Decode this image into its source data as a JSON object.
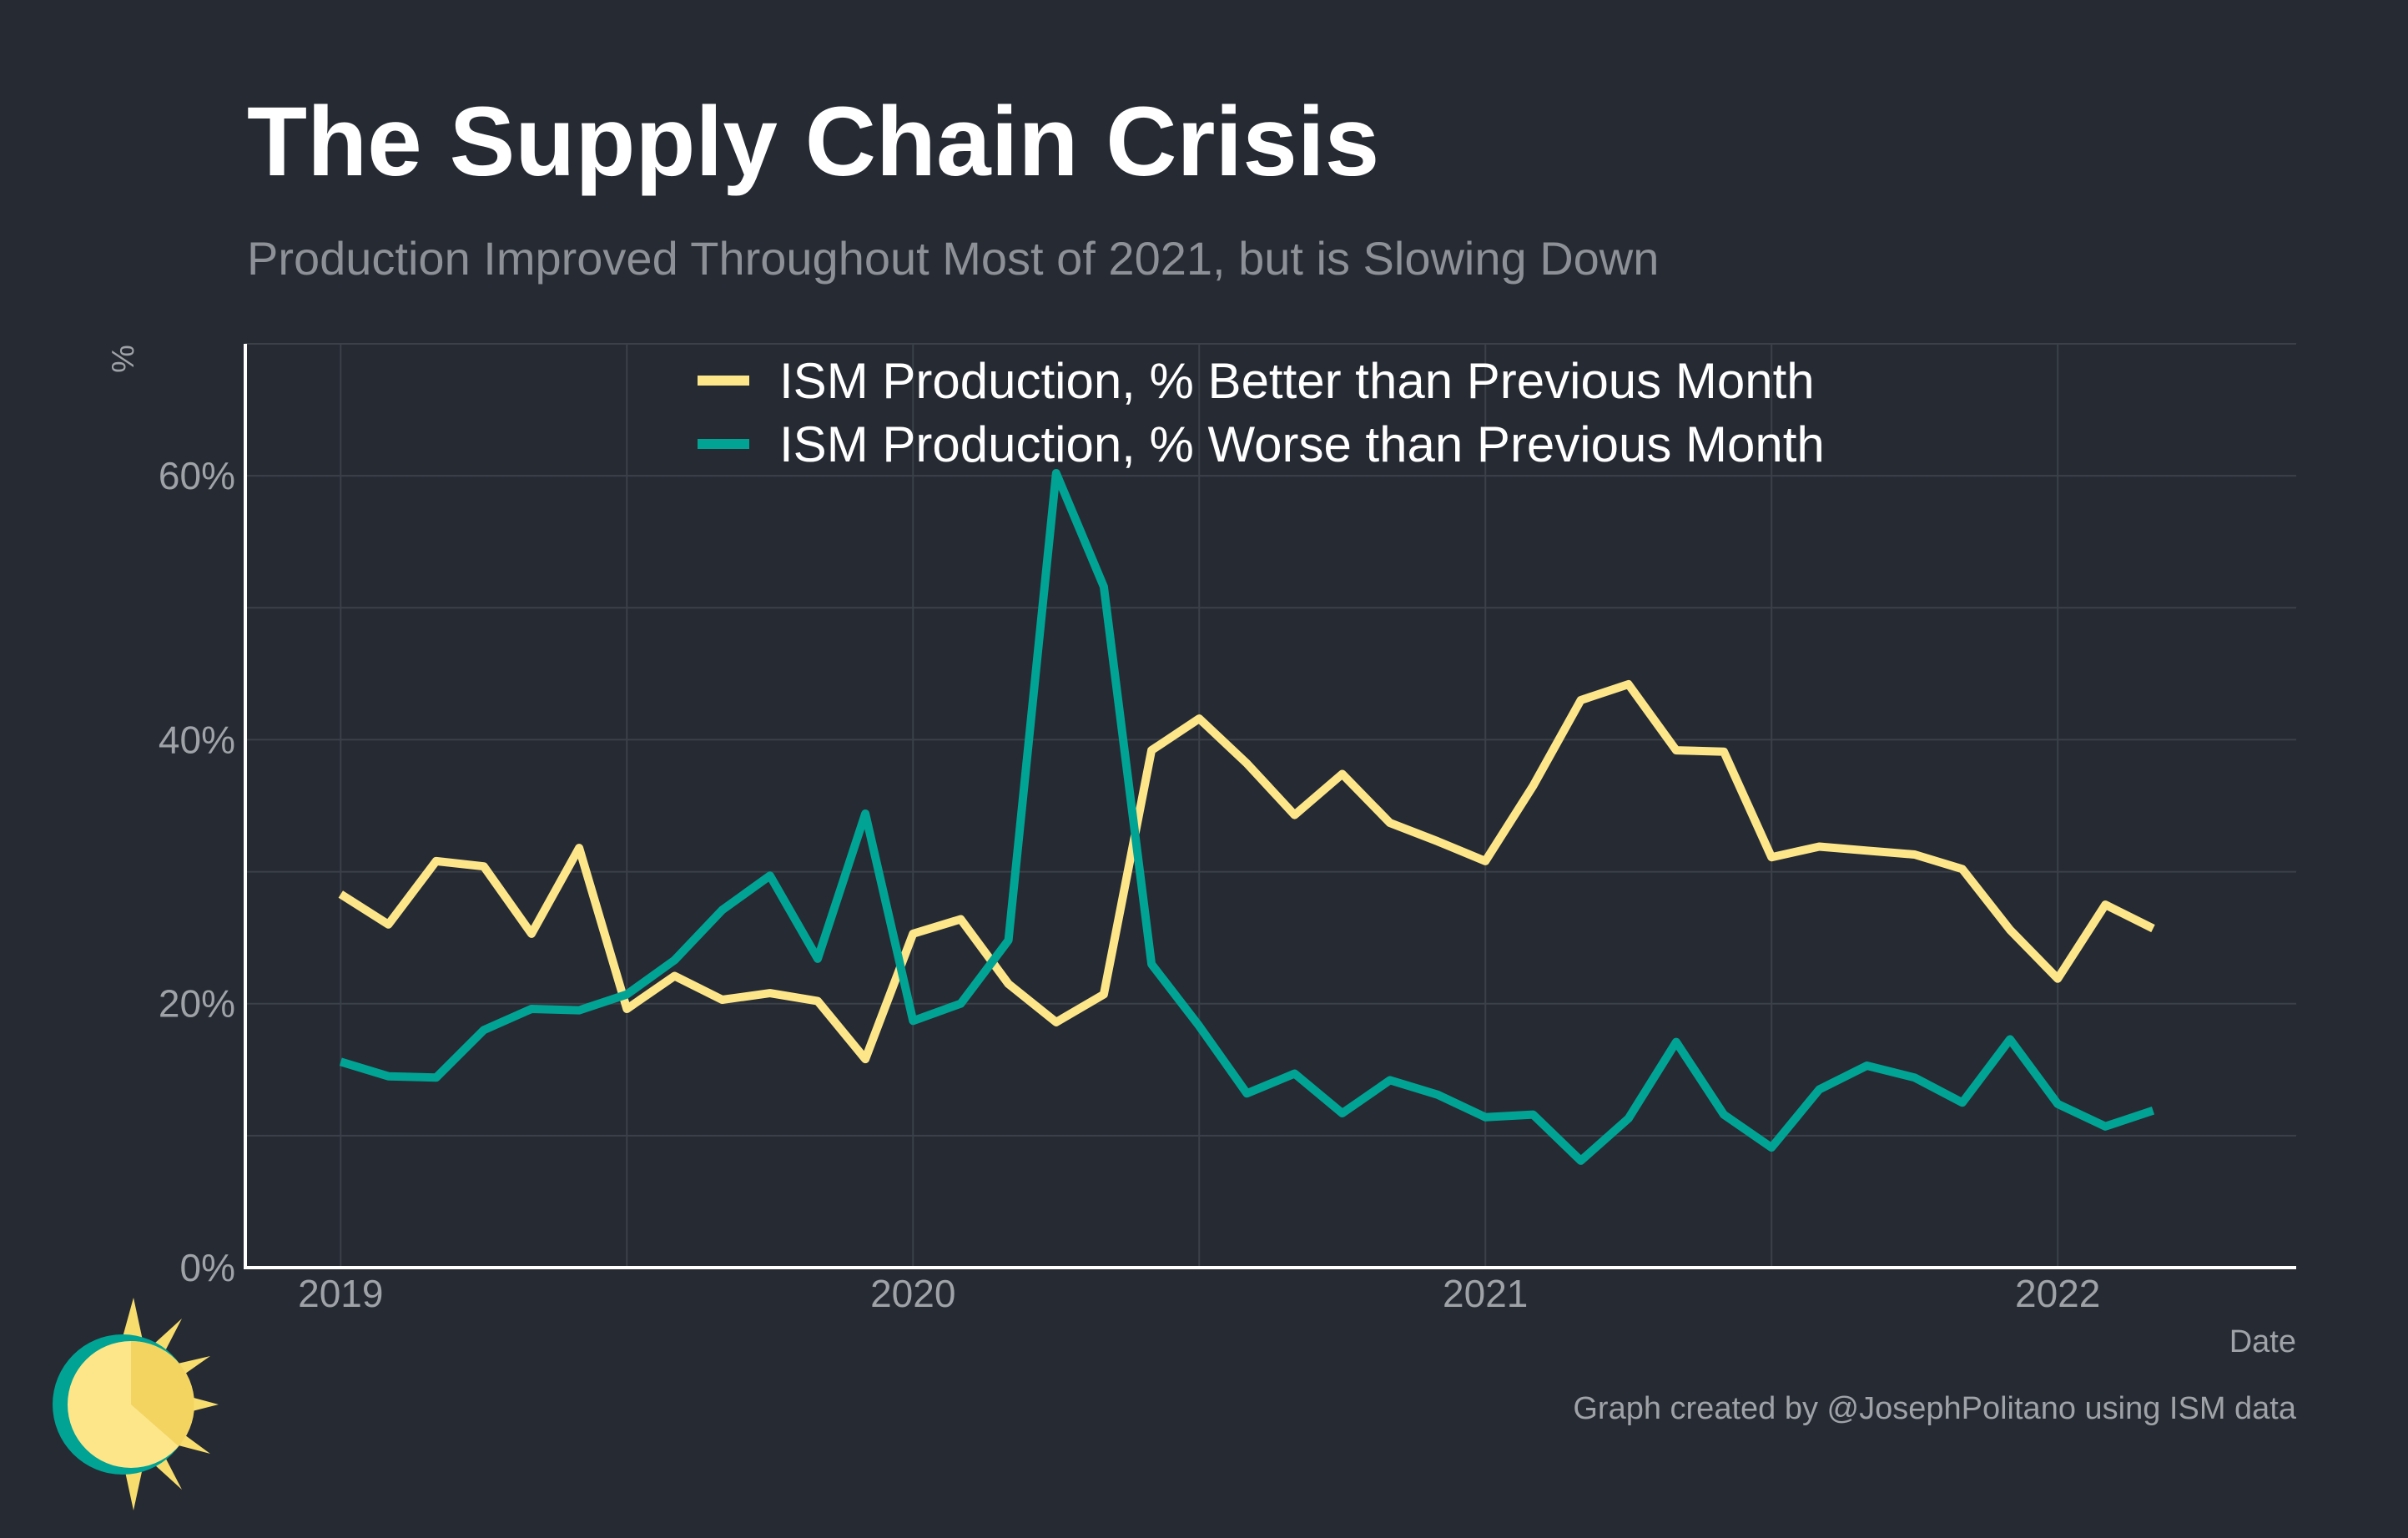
{
  "title": "The Supply Chain Crisis",
  "subtitle": "Production Improved Throughout Most of 2021, but is Slowing Down",
  "caption": "Graph created by @JosephPolitano using ISM data",
  "colors": {
    "background": "#252a33",
    "grid": "#3b4049",
    "axis": "#ffffff",
    "better": "#fde68a",
    "worse": "#00a394",
    "logo_sun": "#f7dd6e",
    "logo_ring": "#00a394"
  },
  "chart_data": {
    "type": "line",
    "xlabel": "Date",
    "ylabel": "%",
    "ylim": [
      0,
      70
    ],
    "yticks": [
      0,
      20,
      40,
      60
    ],
    "ytick_labels": [
      "0%",
      "20%",
      "40%",
      "60%"
    ],
    "xlim": [
      "2018-11",
      "2022-06"
    ],
    "xticks": [
      "2019-01",
      "2020-01",
      "2021-01",
      "2022-01"
    ],
    "xtick_labels": [
      "2019",
      "2020",
      "2021",
      "2022"
    ],
    "grid": true,
    "legend_position": "top-center",
    "x": [
      "2019-01",
      "2019-02",
      "2019-03",
      "2019-04",
      "2019-05",
      "2019-06",
      "2019-07",
      "2019-08",
      "2019-09",
      "2019-10",
      "2019-11",
      "2019-12",
      "2020-01",
      "2020-02",
      "2020-03",
      "2020-04",
      "2020-05",
      "2020-06",
      "2020-07",
      "2020-08",
      "2020-09",
      "2020-10",
      "2020-11",
      "2020-12",
      "2021-01",
      "2021-02",
      "2021-03",
      "2021-04",
      "2021-05",
      "2021-06",
      "2021-07",
      "2021-08",
      "2021-09",
      "2021-10",
      "2021-11",
      "2021-12",
      "2022-01",
      "2022-02",
      "2022-03"
    ],
    "series": [
      {
        "name": "ISM Production, % Better than Previous Month",
        "color": "#fde68a",
        "values": [
          28.3,
          26.0,
          30.8,
          30.4,
          25.3,
          31.8,
          19.6,
          22.1,
          20.3,
          20.8,
          20.2,
          15.8,
          25.3,
          26.4,
          21.5,
          18.6,
          20.7,
          39.2,
          41.6,
          38.2,
          34.3,
          37.4,
          33.7,
          32.3,
          30.8,
          36.5,
          43.0,
          44.2,
          39.2,
          39.1,
          31.1,
          31.9,
          31.6,
          31.3,
          30.2,
          25.6,
          21.9,
          27.5,
          25.7
        ]
      },
      {
        "name": "ISM Production, % Worse than Previous Month",
        "color": "#00a394",
        "values": [
          15.6,
          14.5,
          14.4,
          18.0,
          19.6,
          19.5,
          20.7,
          23.3,
          27.1,
          29.7,
          23.4,
          34.4,
          18.7,
          20.0,
          24.8,
          60.2,
          51.6,
          23.0,
          18.3,
          13.2,
          14.7,
          11.7,
          14.2,
          13.1,
          11.4,
          11.6,
          8.1,
          11.3,
          17.1,
          11.6,
          9.1,
          13.5,
          15.3,
          14.4,
          12.5,
          17.3,
          12.4,
          10.7,
          11.9
        ]
      }
    ]
  }
}
